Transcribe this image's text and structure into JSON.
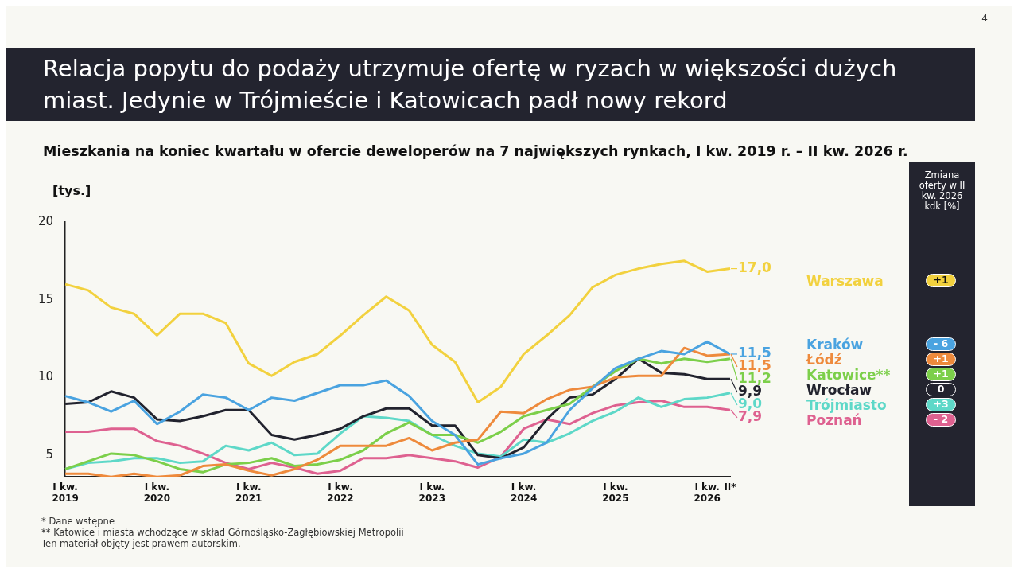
{
  "chart_data": {
    "type": "line",
    "title": "Relacja popytu do podaży utrzymuje ofertę w ryzach w większości dużych miast. Jedynie w Trójmieście i Katowicach padł nowy rekord",
    "subtitle": "Mieszkania na koniec kwartału w ofercie deweloperów na 7 największych rynkach, I kw. 2019 r. – II kw. 2026 r.",
    "ylabel": "[tys.]",
    "categories": [
      "I kw. 2019",
      null,
      null,
      null,
      "I kw. 2020",
      null,
      null,
      null,
      "I kw. 2021",
      null,
      null,
      null,
      "I kw. 2022",
      null,
      null,
      null,
      "I kw. 2023",
      null,
      null,
      null,
      "I kw. 2024",
      null,
      null,
      null,
      "I kw. 2025",
      null,
      null,
      null,
      "I kw. 2026",
      "II*"
    ],
    "ylim": [
      3.6,
      20
    ],
    "yticks": [
      5,
      10,
      15,
      20
    ],
    "grid": false,
    "legend": "right",
    "marker": "none",
    "line_style": "solid",
    "series": [
      {
        "name": "Warszawa",
        "color": "#f2d13e",
        "values": [
          16.0,
          15.6,
          14.5,
          14.1,
          12.7,
          14.1,
          14.1,
          13.5,
          10.9,
          10.1,
          11.0,
          11.5,
          12.7,
          14.0,
          15.2,
          14.3,
          12.1,
          11.0,
          8.4,
          9.4,
          11.5,
          12.7,
          14.0,
          15.8,
          16.6,
          17.0,
          17.3,
          17.5,
          16.8,
          17.0
        ],
        "value_labels": [
          null,
          null,
          null,
          null,
          null,
          null,
          null,
          null,
          null,
          null,
          null,
          null,
          null,
          null,
          null,
          null,
          null,
          null,
          null,
          null,
          null,
          null,
          null,
          null,
          null,
          null,
          null,
          null,
          null,
          "17,0"
        ]
      },
      {
        "name": "Kraków",
        "color": "#4aa3e0",
        "values": [
          8.8,
          8.4,
          7.8,
          8.5,
          7.0,
          7.8,
          8.9,
          8.7,
          7.9,
          8.7,
          8.5,
          9.0,
          9.5,
          9.5,
          9.8,
          8.8,
          7.2,
          6.3,
          4.4,
          4.8,
          5.1,
          5.8,
          7.9,
          9.3,
          10.6,
          11.2,
          11.7,
          11.5,
          12.3,
          11.5
        ],
        "value_labels": [
          null,
          null,
          null,
          null,
          null,
          null,
          null,
          null,
          null,
          null,
          null,
          null,
          null,
          null,
          null,
          null,
          null,
          null,
          null,
          null,
          null,
          null,
          null,
          null,
          null,
          null,
          null,
          null,
          null,
          "11,5"
        ]
      },
      {
        "name": "Łódź",
        "color": "#ee8a3c",
        "values": [
          3.8,
          3.8,
          3.6,
          3.8,
          3.6,
          3.7,
          4.3,
          4.4,
          4.0,
          3.7,
          4.1,
          4.7,
          5.6,
          5.6,
          5.6,
          6.1,
          5.3,
          5.8,
          6.0,
          7.8,
          7.7,
          8.6,
          9.2,
          9.4,
          10.0,
          10.1,
          10.1,
          11.9,
          11.4,
          11.5
        ],
        "value_labels": [
          null,
          null,
          null,
          null,
          null,
          null,
          null,
          null,
          null,
          null,
          null,
          null,
          null,
          null,
          null,
          null,
          null,
          null,
          null,
          null,
          null,
          null,
          null,
          null,
          null,
          null,
          null,
          null,
          null,
          "11,5"
        ]
      },
      {
        "name": "Katowice**",
        "color": "#7ccf4a",
        "values": [
          4.1,
          4.6,
          5.1,
          5.0,
          4.6,
          4.1,
          3.9,
          4.4,
          4.5,
          4.8,
          4.3,
          4.4,
          4.7,
          5.3,
          6.4,
          7.1,
          6.3,
          6.3,
          5.8,
          6.5,
          7.5,
          7.9,
          8.3,
          9.4,
          10.4,
          11.2,
          10.9,
          11.2,
          11.0,
          11.2
        ],
        "value_labels": [
          null,
          null,
          null,
          null,
          null,
          null,
          null,
          null,
          null,
          null,
          null,
          null,
          null,
          null,
          null,
          null,
          null,
          null,
          null,
          null,
          null,
          null,
          null,
          null,
          null,
          null,
          null,
          null,
          null,
          "11,2"
        ]
      },
      {
        "name": "Wrocław",
        "color": "#22232e",
        "values": [
          8.3,
          8.4,
          9.1,
          8.7,
          7.3,
          7.2,
          7.5,
          7.9,
          7.9,
          6.3,
          6.0,
          6.3,
          6.7,
          7.5,
          8.0,
          8.0,
          6.9,
          6.9,
          5.0,
          4.8,
          5.5,
          7.3,
          8.7,
          8.9,
          9.9,
          11.2,
          10.3,
          10.2,
          9.9,
          9.9
        ],
        "value_labels": [
          null,
          null,
          null,
          null,
          null,
          null,
          null,
          null,
          null,
          null,
          null,
          null,
          null,
          null,
          null,
          null,
          null,
          null,
          null,
          null,
          null,
          null,
          null,
          null,
          null,
          null,
          null,
          null,
          null,
          "9,9"
        ]
      },
      {
        "name": "Trójmiasto",
        "color": "#5ed8c8",
        "values": [
          4.1,
          4.5,
          4.6,
          4.8,
          4.8,
          4.5,
          4.6,
          5.6,
          5.3,
          5.8,
          5.0,
          5.1,
          6.4,
          7.5,
          7.4,
          7.2,
          6.3,
          5.6,
          5.1,
          4.9,
          6.0,
          5.8,
          6.4,
          7.2,
          7.8,
          8.7,
          8.1,
          8.6,
          8.7,
          9.0
        ],
        "value_labels": [
          null,
          null,
          null,
          null,
          null,
          null,
          null,
          null,
          null,
          null,
          null,
          null,
          null,
          null,
          null,
          null,
          null,
          null,
          null,
          null,
          null,
          null,
          null,
          null,
          null,
          null,
          null,
          null,
          null,
          "9,0"
        ]
      },
      {
        "name": "Poznań",
        "color": "#de6190",
        "values": [
          6.5,
          6.5,
          6.7,
          6.7,
          5.9,
          5.6,
          5.1,
          4.5,
          4.1,
          4.5,
          4.2,
          3.8,
          4.0,
          4.8,
          4.8,
          5.0,
          4.8,
          4.6,
          4.2,
          4.9,
          6.7,
          7.3,
          7.0,
          7.7,
          8.2,
          8.4,
          8.5,
          8.1,
          8.1,
          7.9
        ],
        "value_labels": [
          null,
          null,
          null,
          null,
          null,
          null,
          null,
          null,
          null,
          null,
          null,
          null,
          null,
          null,
          null,
          null,
          null,
          null,
          null,
          null,
          null,
          null,
          null,
          null,
          null,
          null,
          null,
          null,
          null,
          "7,9"
        ]
      }
    ],
    "annotations": [
      "Zmiana oferty w II kw. 2026 kdk [%]",
      "+1",
      "- 6",
      "+1",
      "+1",
      "0",
      "+3",
      "- 2",
      "* Dane wstępne",
      "** Katowice i miasta wchodzące w skład Górnośląsko-Zagłębiowskiej Metropolii",
      "Ten materiał objęty jest prawem autorskim.",
      "4"
    ]
  }
}
